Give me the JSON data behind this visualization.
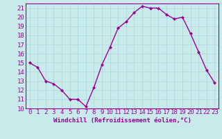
{
  "x": [
    0,
    1,
    2,
    3,
    4,
    5,
    6,
    7,
    8,
    9,
    10,
    11,
    12,
    13,
    14,
    15,
    16,
    17,
    18,
    19,
    20,
    21,
    22,
    23
  ],
  "y": [
    15,
    14.5,
    13,
    12.7,
    12,
    11,
    11,
    10.2,
    12.3,
    14.8,
    16.7,
    18.8,
    19.5,
    20.5,
    21.2,
    21.0,
    21.0,
    20.3,
    19.8,
    20.0,
    18.2,
    16.2,
    14.2,
    12.8
  ],
  "line_color": "#990099",
  "marker": "D",
  "marker_size": 2.0,
  "bg_color": "#c8eaea",
  "grid_color": "#a8d8d8",
  "tick_label_color": "#990099",
  "xlabel": "Windchill (Refroidissement éolien,°C)",
  "xlabel_color": "#990099",
  "ylim": [
    10,
    21.5
  ],
  "xlim": [
    -0.5,
    23.5
  ],
  "yticks": [
    10,
    11,
    12,
    13,
    14,
    15,
    16,
    17,
    18,
    19,
    20,
    21
  ],
  "xticks": [
    0,
    1,
    2,
    3,
    4,
    5,
    6,
    7,
    8,
    9,
    10,
    11,
    12,
    13,
    14,
    15,
    16,
    17,
    18,
    19,
    20,
    21,
    22,
    23
  ],
  "xtick_labels": [
    "0",
    "1",
    "2",
    "3",
    "4",
    "5",
    "6",
    "7",
    "8",
    "9",
    "10",
    "11",
    "12",
    "13",
    "14",
    "15",
    "16",
    "17",
    "18",
    "19",
    "20",
    "21",
    "22",
    "23"
  ],
  "ytick_labels": [
    "10",
    "11",
    "12",
    "13",
    "14",
    "15",
    "16",
    "17",
    "18",
    "19",
    "20",
    "21"
  ],
  "spine_color": "#990099",
  "linewidth": 1.0,
  "tick_fontsize": 6.5,
  "xlabel_fontsize": 6.5
}
